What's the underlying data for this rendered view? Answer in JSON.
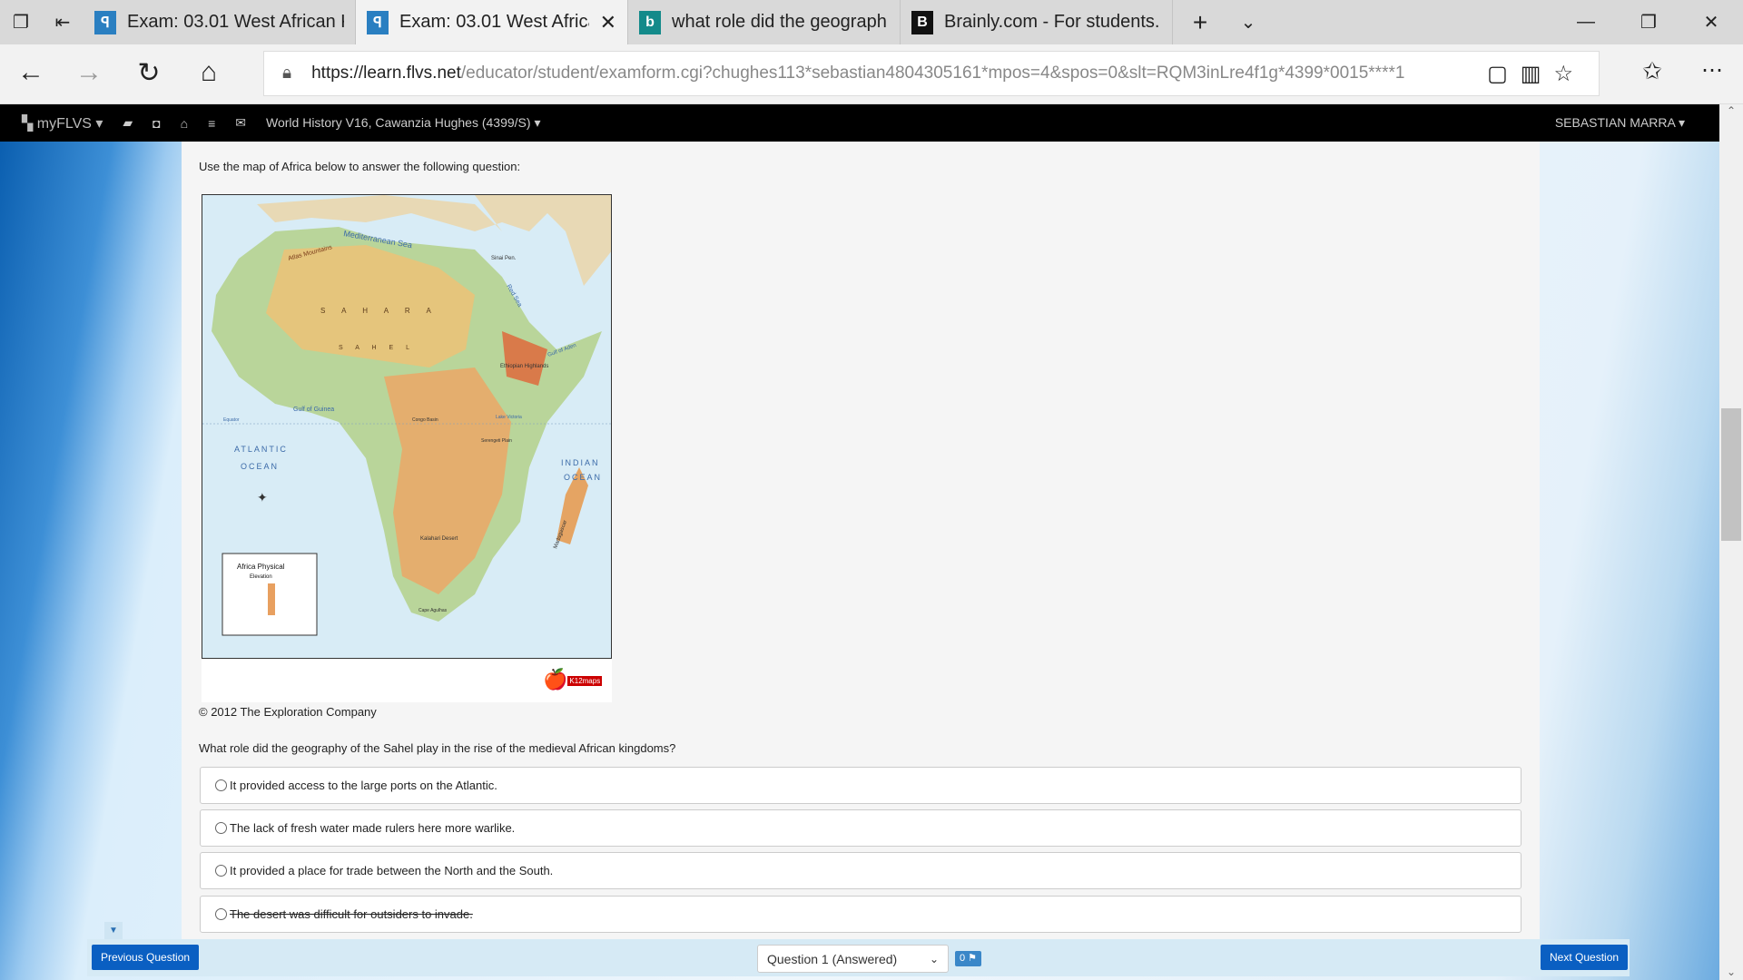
{
  "browser": {
    "tabs": [
      {
        "title": "Exam: 03.01 West African Ki",
        "icon": "flvs-icon",
        "active": false
      },
      {
        "title": "Exam: 03.01 West Africa",
        "icon": "flvs-icon",
        "active": true
      },
      {
        "title": "what role did the geograph",
        "icon": "bing-icon",
        "active": false
      },
      {
        "title": "Brainly.com - For students.",
        "icon": "brainly-icon",
        "active": false
      }
    ],
    "url_host": "https://learn.flvs.net",
    "url_path": "/educator/student/examform.cgi?chughes113*sebastian4804305161*mpos=4&spos=0&slt=RQM3inLre4f1g*4399*0015****1"
  },
  "nav": {
    "brand": "myFLVS",
    "course": "World History V16, Cawanzia Hughes (4399/S)",
    "user": "SEBASTIAN MARRA"
  },
  "question": {
    "intro": "Use the map of Africa below to answer the following question:",
    "map_title": "Africa Physical",
    "map_subtitle": "Elevation",
    "map_labels": [
      "Mediterranean Sea",
      "Atlas Mountains",
      "S A H A R A",
      "S A H E L",
      "Gulf of Guinea",
      "ATLANTIC",
      "OCEAN",
      "INDIAN",
      "OCEAN",
      "Ethiopian Highlands",
      "Gulf of Aden",
      "Kalahari Desert",
      "Madagascar",
      "Red Sea",
      "Sinai Pen.",
      "Equator",
      "Cape Agulhas",
      "Lake Victoria",
      "Serengeti Plain",
      "Congo Basin"
    ],
    "logo_text": "K12maps",
    "copyright": "© 2012 The Exploration Company",
    "prompt": "What role did the geography of the Sahel play in the rise of the medieval African kingdoms?",
    "options": [
      {
        "text": "It provided access to the large ports on the Atlantic.",
        "struck": false
      },
      {
        "text": "The lack of fresh water made rulers here more warlike.",
        "struck": false
      },
      {
        "text": "It provided a place for trade between the North and the South.",
        "struck": false
      },
      {
        "text": "The desert was difficult for outsiders to invade.",
        "struck": true
      }
    ]
  },
  "footer": {
    "prev": "Previous Question",
    "next": "Next Question",
    "selector": "Question 1 (Answered)",
    "flag_count": "0"
  },
  "colors": {
    "accent": "#0a5fc2",
    "nav_bg": "#000000",
    "footer_bg": "#d6eaf5"
  }
}
